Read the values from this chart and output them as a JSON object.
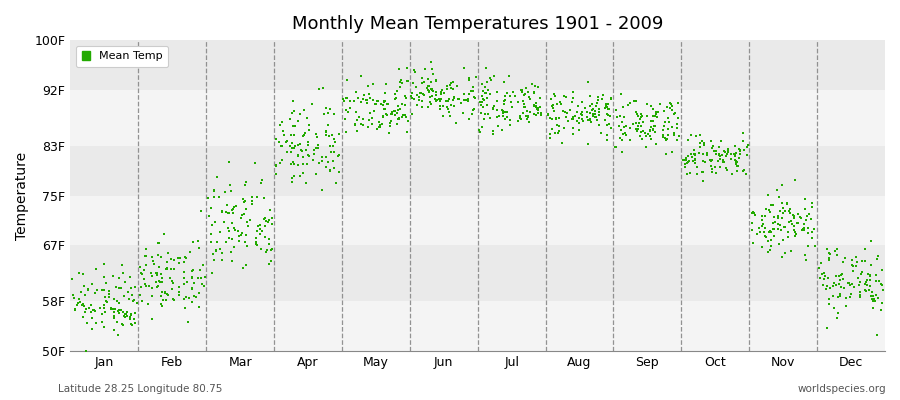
{
  "title": "Monthly Mean Temperatures 1901 - 2009",
  "ylabel": "Temperature",
  "bottom_left_text": "Latitude 28.25 Longitude 80.75",
  "bottom_right_text": "worldspecies.org",
  "legend_label": "Mean Temp",
  "marker_color": "#22aa00",
  "background_color": "#ffffff",
  "band_color_light": "#f4f4f4",
  "band_color_dark": "#eaeaea",
  "yticks": [
    50,
    58,
    67,
    75,
    83,
    92,
    100
  ],
  "ylabels": [
    "50F",
    "58F",
    "67F",
    "75F",
    "83F",
    "92F",
    "100F"
  ],
  "ylim": [
    50,
    100
  ],
  "months": [
    "Jan",
    "Feb",
    "Mar",
    "Apr",
    "May",
    "Jun",
    "Jul",
    "Aug",
    "Sep",
    "Oct",
    "Nov",
    "Dec"
  ],
  "num_years": 109,
  "month_params": [
    {
      "mean": 57.5,
      "std": 2.5,
      "trend": 0.0
    },
    {
      "mean": 61.5,
      "std": 2.8,
      "trend": 0.0
    },
    {
      "mean": 70.0,
      "std": 4.0,
      "trend": 0.0
    },
    {
      "mean": 83.0,
      "std": 3.5,
      "trend": 0.0
    },
    {
      "mean": 89.5,
      "std": 2.5,
      "trend": 0.0
    },
    {
      "mean": 91.5,
      "std": 2.0,
      "trend": 0.0
    },
    {
      "mean": 89.5,
      "std": 1.8,
      "trend": 0.0
    },
    {
      "mean": 88.0,
      "std": 1.8,
      "trend": 0.0
    },
    {
      "mean": 86.5,
      "std": 2.0,
      "trend": 0.0
    },
    {
      "mean": 81.0,
      "std": 1.8,
      "trend": 0.0
    },
    {
      "mean": 70.5,
      "std": 2.8,
      "trend": 0.0
    },
    {
      "mean": 61.5,
      "std": 2.8,
      "trend": 0.0
    }
  ]
}
